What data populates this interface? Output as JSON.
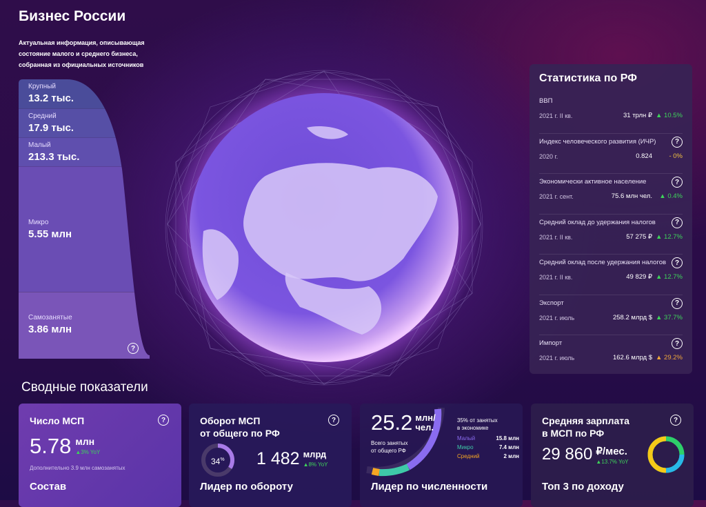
{
  "header": {
    "title": "Бизнес России",
    "subtitle": "Актуальная информация, описывающая состояние малого и среднего бизнеса, собранная из официальных источников"
  },
  "segments": [
    {
      "label": "Крупный",
      "value": "13.2 тыс.",
      "color": "#4a4c9a"
    },
    {
      "label": "Средний",
      "value": "17.9 тыс.",
      "color": "#564fa6"
    },
    {
      "label": "Малый",
      "value": "213.3 тыс.",
      "color": "#5f4fae"
    },
    {
      "label": "Микро",
      "value": "5.55 млн",
      "color": "#6a4db4"
    },
    {
      "label": "Самозанятые",
      "value": "3.86 млн",
      "color": "#7a55b8"
    }
  ],
  "stats": {
    "title": "Статистика по РФ",
    "rows": [
      {
        "label": "ВВП",
        "date": "2021 г. II кв.",
        "value": "31 трлн ₽",
        "change": "▲ 10.5%",
        "trend": "up",
        "help": false
      },
      {
        "label": "Индекс человеческого развития (ИЧР)",
        "date": "2020 г.",
        "value": "0.824",
        "change": "- 0%",
        "trend": "flat",
        "help": true
      },
      {
        "label": "Экономически активное население",
        "date": "2021 г. сент.",
        "value": "75.6 млн чел.",
        "change": "▲ 0.4%",
        "trend": "up",
        "help": true
      },
      {
        "label": "Средний оклад до удержания налогов",
        "date": "2021 г. II кв.",
        "value": "57 275 ₽",
        "change": "▲ 12.7%",
        "trend": "up",
        "help": true
      },
      {
        "label": "Средний оклад после удержания налогов",
        "date": "2021 г. II кв.",
        "value": "49 829 ₽",
        "change": "▲ 12.7%",
        "trend": "up",
        "help": true
      },
      {
        "label": "Экспорт",
        "date": "2021 г. июль",
        "value": "258.2 млрд $",
        "change": "▲ 37.7%",
        "trend": "up",
        "help": true
      },
      {
        "label": "Импорт",
        "date": "2021 г. июль",
        "value": "162.6 млрд $",
        "change": "▲ 29.2%",
        "trend": "warn",
        "help": true
      }
    ]
  },
  "summary": {
    "title": "Сводные показатели",
    "smb_count": {
      "title": "Число МСП",
      "value": "5.78",
      "unit": "млн",
      "change": "▲3% YoY",
      "note": "Дополнительно 3.9 млн самозанятых",
      "footer": "Состав"
    },
    "turnover": {
      "title1": "Оборот МСП",
      "title2": "от общего по РФ",
      "share": "34",
      "share_unit": "%",
      "share_fraction": 0.34,
      "value": "1 482",
      "unit": "млрд",
      "change": "▲8% YoY",
      "footer": "Лидер по обороту"
    },
    "employment": {
      "value": "25.2",
      "unit1": "млн/",
      "unit2": "чел.",
      "caption1": "Всего занятых",
      "caption2": "от общего РФ",
      "share1": "35% от занятых",
      "share2": "в экономике",
      "breakdown": [
        {
          "label": "Малый",
          "value": "15.8 млн",
          "color": "#8a6cf0"
        },
        {
          "label": "Микро",
          "value": "7.4 млн",
          "color": "#3ec9a8"
        },
        {
          "label": "Средний",
          "value": "2 млн",
          "color": "#f5a623"
        }
      ],
      "footer": "Лидер по численности"
    },
    "salary": {
      "title1": "Средняя зарплата",
      "title2": "в МСП по РФ",
      "value": "29 860",
      "unit": "₽/мес.",
      "change": "▲13.7% YoY",
      "footer": "Топ 3 по доходу"
    }
  }
}
